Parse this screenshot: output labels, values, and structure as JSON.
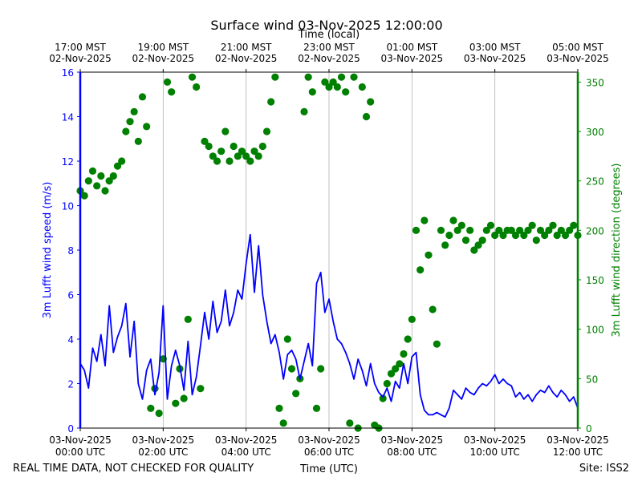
{
  "chart_data": {
    "type": "line",
    "title": "Surface wind 03-Nov-2025 12:00:00",
    "top_axis_label": "Time (local)",
    "xlabel": "Time (UTC)",
    "ylabel_left": "3m Lufft wind speed (m/s)",
    "ylabel_right": "3m Lufft wind direction (degrees)",
    "footer_left": "REAL TIME DATA, NOT CHECKED FOR QUALITY",
    "footer_right": "Site: ISS2",
    "x_range_hours": [
      0,
      12
    ],
    "ylim_left": [
      0,
      16
    ],
    "ylim_right": [
      0,
      360
    ],
    "grid": "vertical",
    "colors": {
      "speed": "#0000ff",
      "direction": "#008000",
      "grid": "#b0b0b0",
      "axes": "#000000"
    },
    "x_ticks_utc": [
      {
        "hour": 0,
        "line1": "03-Nov-2025",
        "line2": "00:00 UTC"
      },
      {
        "hour": 2,
        "line1": "03-Nov-2025",
        "line2": "02:00 UTC"
      },
      {
        "hour": 4,
        "line1": "03-Nov-2025",
        "line2": "04:00 UTC"
      },
      {
        "hour": 6,
        "line1": "03-Nov-2025",
        "line2": "06:00 UTC"
      },
      {
        "hour": 8,
        "line1": "03-Nov-2025",
        "line2": "08:00 UTC"
      },
      {
        "hour": 10,
        "line1": "03-Nov-2025",
        "line2": "10:00 UTC"
      },
      {
        "hour": 12,
        "line1": "03-Nov-2025",
        "line2": "12:00 UTC"
      }
    ],
    "x_ticks_local": [
      {
        "hour": 0,
        "line1": "17:00 MST",
        "line2": "02-Nov-2025"
      },
      {
        "hour": 2,
        "line1": "19:00 MST",
        "line2": "02-Nov-2025"
      },
      {
        "hour": 4,
        "line1": "21:00 MST",
        "line2": "02-Nov-2025"
      },
      {
        "hour": 6,
        "line1": "23:00 MST",
        "line2": "02-Nov-2025"
      },
      {
        "hour": 8,
        "line1": "01:00 MST",
        "line2": "03-Nov-2025"
      },
      {
        "hour": 10,
        "line1": "03:00 MST",
        "line2": "03-Nov-2025"
      },
      {
        "hour": 12,
        "line1": "05:00 MST",
        "line2": "03-Nov-2025"
      }
    ],
    "y_ticks_left": [
      0,
      2,
      4,
      6,
      8,
      10,
      12,
      14,
      16
    ],
    "y_ticks_right": [
      0,
      50,
      100,
      150,
      200,
      250,
      300,
      350
    ],
    "series": [
      {
        "name": "3m Lufft wind speed (m/s)",
        "axis": "left",
        "style": "line",
        "x": [
          0,
          0.1,
          0.2,
          0.3,
          0.4,
          0.5,
          0.6,
          0.7,
          0.8,
          0.9,
          1.0,
          1.1,
          1.2,
          1.3,
          1.4,
          1.5,
          1.6,
          1.7,
          1.8,
          1.9,
          2.0,
          2.1,
          2.2,
          2.3,
          2.4,
          2.5,
          2.6,
          2.7,
          2.8,
          2.9,
          3.0,
          3.1,
          3.2,
          3.3,
          3.4,
          3.5,
          3.6,
          3.7,
          3.8,
          3.9,
          4.0,
          4.1,
          4.2,
          4.3,
          4.4,
          4.5,
          4.6,
          4.7,
          4.8,
          4.9,
          5.0,
          5.1,
          5.2,
          5.3,
          5.4,
          5.5,
          5.6,
          5.7,
          5.8,
          5.9,
          6.0,
          6.1,
          6.2,
          6.3,
          6.4,
          6.5,
          6.6,
          6.7,
          6.8,
          6.9,
          7.0,
          7.1,
          7.2,
          7.3,
          7.4,
          7.5,
          7.6,
          7.7,
          7.8,
          7.9,
          8.0,
          8.1,
          8.2,
          8.3,
          8.4,
          8.5,
          8.6,
          8.7,
          8.8,
          8.9,
          9.0,
          9.1,
          9.2,
          9.3,
          9.4,
          9.5,
          9.6,
          9.7,
          9.8,
          9.9,
          10.0,
          10.1,
          10.2,
          10.3,
          10.4,
          10.5,
          10.6,
          10.7,
          10.8,
          10.9,
          11.0,
          11.1,
          11.2,
          11.3,
          11.4,
          11.5,
          11.6,
          11.7,
          11.8,
          11.9,
          12.0
        ],
        "values": [
          2.9,
          2.6,
          1.8,
          3.6,
          3.0,
          4.2,
          2.8,
          5.5,
          3.4,
          4.1,
          4.6,
          5.6,
          3.2,
          4.8,
          2.0,
          1.3,
          2.6,
          3.1,
          1.5,
          2.5,
          5.5,
          1.3,
          2.8,
          3.5,
          2.8,
          1.7,
          3.9,
          1.5,
          2.3,
          3.7,
          5.2,
          4.0,
          5.7,
          4.3,
          4.8,
          6.2,
          4.6,
          5.2,
          6.2,
          5.8,
          7.4,
          8.7,
          6.1,
          8.2,
          6.0,
          4.8,
          3.8,
          4.2,
          3.4,
          2.2,
          3.3,
          3.5,
          3.1,
          2.2,
          3.0,
          3.8,
          2.8,
          6.5,
          7.0,
          5.2,
          5.8,
          4.8,
          4.0,
          3.8,
          3.4,
          2.9,
          2.2,
          3.1,
          2.6,
          1.9,
          2.9,
          2.0,
          1.6,
          1.4,
          1.8,
          1.2,
          2.1,
          1.8,
          2.9,
          2.0,
          3.2,
          3.4,
          1.5,
          0.8,
          0.6,
          0.6,
          0.7,
          0.6,
          0.5,
          0.9,
          1.7,
          1.5,
          1.3,
          1.8,
          1.6,
          1.5,
          1.8,
          2.0,
          1.9,
          2.1,
          2.4,
          2.0,
          2.2,
          2.0,
          1.9,
          1.4,
          1.6,
          1.3,
          1.5,
          1.2,
          1.5,
          1.7,
          1.6,
          1.9,
          1.6,
          1.4,
          1.7,
          1.5,
          1.2,
          1.4,
          0.9
        ]
      },
      {
        "name": "3m Lufft wind direction (degrees)",
        "axis": "right",
        "style": "markers",
        "x": [
          0,
          0.1,
          0.2,
          0.3,
          0.4,
          0.5,
          0.6,
          0.7,
          0.8,
          0.9,
          1.0,
          1.1,
          1.2,
          1.3,
          1.4,
          1.5,
          1.6,
          1.7,
          1.8,
          1.9,
          2.0,
          2.1,
          2.2,
          2.3,
          2.4,
          2.5,
          2.6,
          2.7,
          2.8,
          2.9,
          3.0,
          3.1,
          3.2,
          3.3,
          3.4,
          3.5,
          3.6,
          3.7,
          3.8,
          3.9,
          4.0,
          4.1,
          4.2,
          4.3,
          4.4,
          4.5,
          4.6,
          4.7,
          4.8,
          4.9,
          5.0,
          5.1,
          5.2,
          5.3,
          5.4,
          5.5,
          5.6,
          5.7,
          5.8,
          5.9,
          6.0,
          6.1,
          6.2,
          6.3,
          6.4,
          6.5,
          6.6,
          6.7,
          6.8,
          6.9,
          7.0,
          7.1,
          7.2,
          7.3,
          7.4,
          7.5,
          7.6,
          7.7,
          7.8,
          7.9,
          8.0,
          8.1,
          8.2,
          8.3,
          8.4,
          8.5,
          8.6,
          8.7,
          8.8,
          8.9,
          9.0,
          9.1,
          9.2,
          9.3,
          9.4,
          9.5,
          9.6,
          9.7,
          9.8,
          9.9,
          10.0,
          10.1,
          10.2,
          10.3,
          10.4,
          10.5,
          10.6,
          10.7,
          10.8,
          10.9,
          11.0,
          11.1,
          11.2,
          11.3,
          11.4,
          11.5,
          11.6,
          11.7,
          11.8,
          11.9,
          12.0
        ],
        "values": [
          240,
          235,
          250,
          260,
          245,
          255,
          240,
          250,
          255,
          265,
          270,
          300,
          310,
          320,
          290,
          335,
          305,
          20,
          40,
          15,
          70,
          350,
          340,
          25,
          60,
          30,
          110,
          355,
          345,
          40,
          290,
          285,
          275,
          270,
          280,
          300,
          270,
          285,
          275,
          280,
          275,
          270,
          280,
          275,
          285,
          300,
          330,
          355,
          20,
          5,
          90,
          60,
          35,
          50,
          320,
          355,
          340,
          20,
          60,
          350,
          345,
          350,
          345,
          355,
          340,
          5,
          355,
          0,
          345,
          315,
          330,
          3,
          0,
          30,
          45,
          55,
          60,
          65,
          75,
          90,
          110,
          200,
          160,
          210,
          175,
          120,
          85,
          200,
          185,
          195,
          210,
          200,
          205,
          190,
          200,
          180,
          185,
          190,
          200,
          205,
          195,
          200,
          195,
          200,
          200,
          195,
          200,
          195,
          200,
          205,
          190,
          200,
          195,
          200,
          205,
          195,
          200,
          195,
          200,
          205,
          195
        ]
      }
    ]
  }
}
